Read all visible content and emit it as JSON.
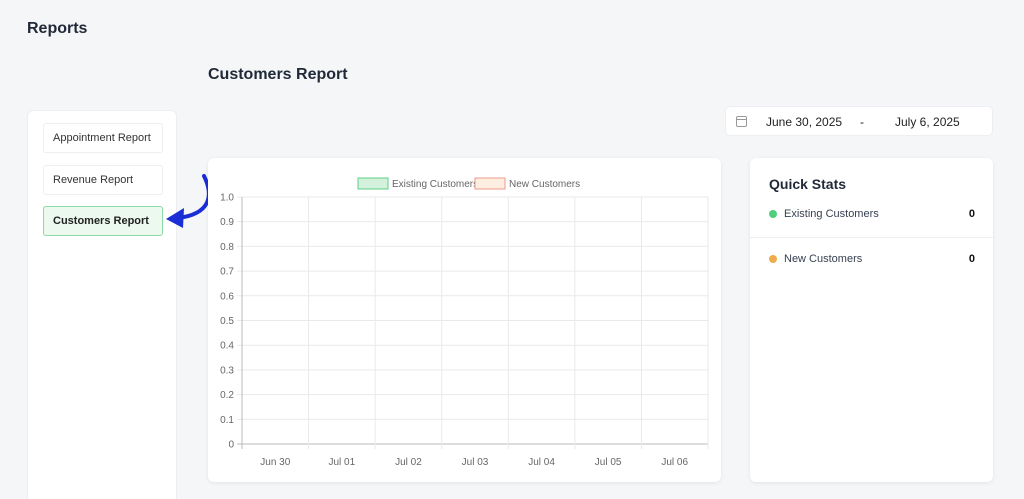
{
  "page": {
    "title": "Reports"
  },
  "report": {
    "title": "Customers Report"
  },
  "sidebar": {
    "items": [
      {
        "label": "Appointment Report",
        "active": false
      },
      {
        "label": "Revenue Report",
        "active": false
      },
      {
        "label": "Customers Report",
        "active": true
      }
    ]
  },
  "date_range": {
    "icon": "calendar-icon",
    "start": "June 30, 2025",
    "separator": "-",
    "end": "July 6, 2025"
  },
  "quick_stats": {
    "title": "Quick Stats",
    "items": [
      {
        "label": "Existing Customers",
        "value": "0",
        "color": "#4fcf7c"
      },
      {
        "label": "New Customers",
        "value": "0",
        "color": "#f0ac4a"
      }
    ]
  },
  "annotation": {
    "icon": "arrow-pointer-icon",
    "color": "#1a2ed6"
  },
  "chart_data": {
    "type": "bar",
    "categories": [
      "Jun 30",
      "Jul 01",
      "Jul 02",
      "Jul 03",
      "Jul 04",
      "Jul 05",
      "Jul 06"
    ],
    "series": [
      {
        "name": "Existing Customers",
        "values": [
          0,
          0,
          0,
          0,
          0,
          0,
          0
        ],
        "fill": "#d3f1dc",
        "stroke": "#5fcf86"
      },
      {
        "name": "New Customers",
        "values": [
          0,
          0,
          0,
          0,
          0,
          0,
          0
        ],
        "fill": "#fdeee0",
        "stroke": "#ee9a8e"
      }
    ],
    "ylim": [
      0,
      1
    ],
    "yticks": [
      "1.0",
      "0.9",
      "0.8",
      "0.7",
      "0.6",
      "0.5",
      "0.4",
      "0.3",
      "0.2",
      "0.1",
      "0"
    ],
    "legend": "top",
    "grid": true
  }
}
